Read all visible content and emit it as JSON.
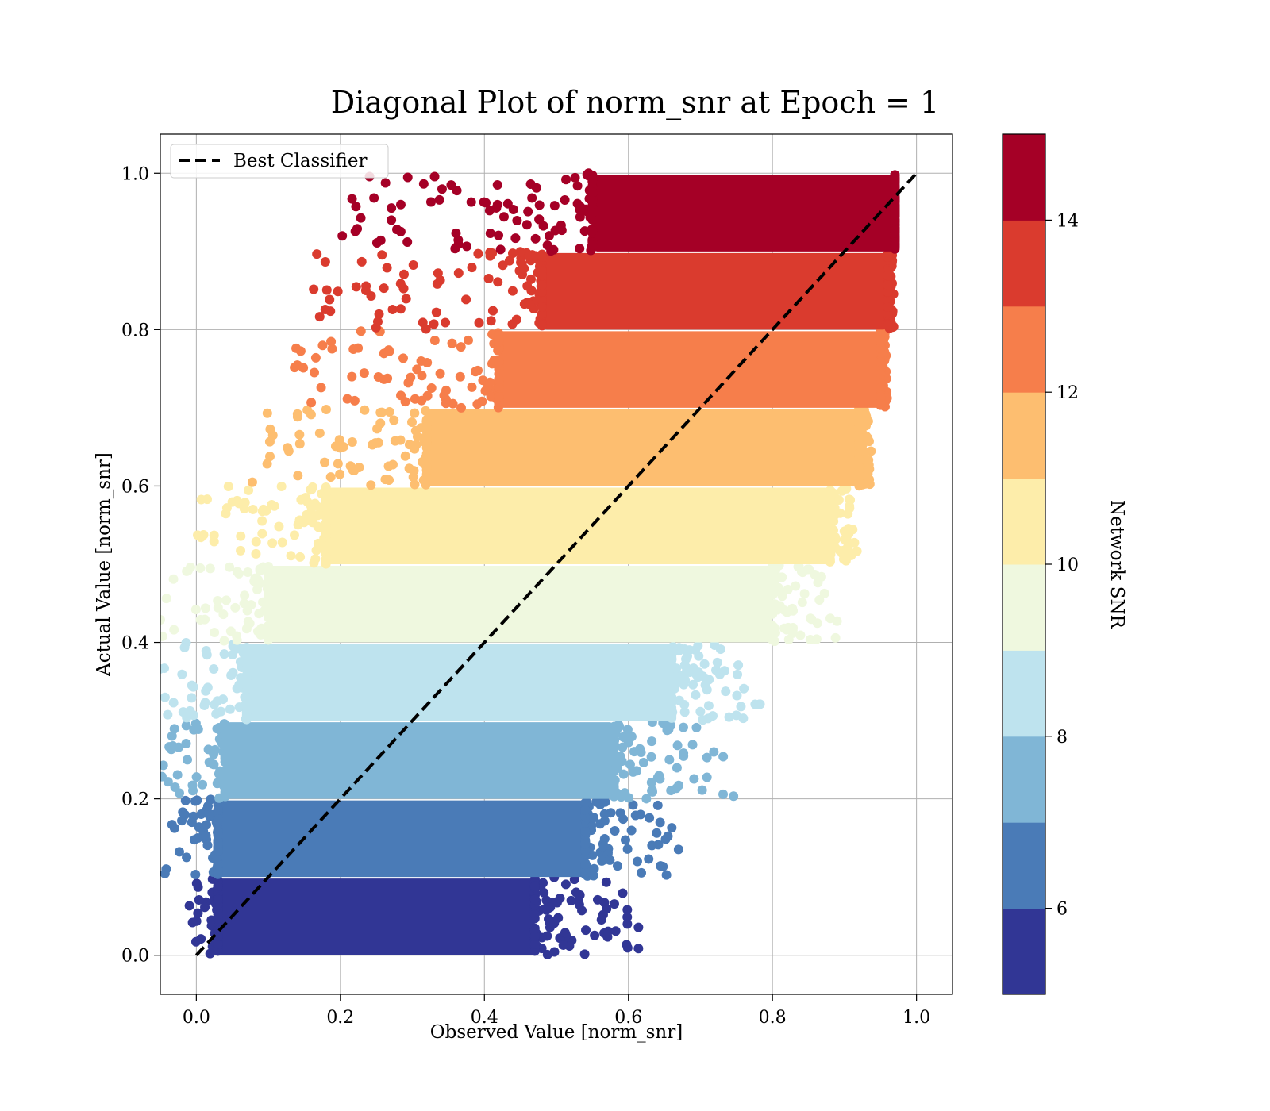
{
  "chart_data": {
    "type": "scatter",
    "title": "Diagonal Plot of norm_snr at Epoch = 1",
    "xlabel": "Observed Value [norm_snr]",
    "ylabel": "Actual Value [norm_snr]",
    "xlim": [
      -0.05,
      1.05
    ],
    "ylim": [
      -0.05,
      1.05
    ],
    "x_ticks": [
      "0.0",
      "0.2",
      "0.4",
      "0.6",
      "0.8",
      "1.0"
    ],
    "y_ticks": [
      "0.0",
      "0.2",
      "0.4",
      "0.6",
      "0.8",
      "1.0"
    ],
    "grid": true,
    "legend": {
      "placement": "top-left",
      "entries": [
        "Best Classifier"
      ]
    },
    "reference_line": {
      "name": "Best Classifier",
      "style": "dashed",
      "color": "#000000",
      "x": [
        0.0,
        1.0
      ],
      "y": [
        0.0,
        1.0
      ]
    },
    "colorbar": {
      "label": "Network SNR",
      "min": 5,
      "max": 15,
      "ticks": [
        "6",
        "8",
        "10",
        "12",
        "14"
      ],
      "colors": [
        "#313695",
        "#4a7bb7",
        "#80b6d6",
        "#bee3ee",
        "#eff8df",
        "#fdedaa",
        "#fdbe70",
        "#f67e4b",
        "#da3b2e",
        "#a50026"
      ]
    },
    "bands": [
      {
        "snr_bin": [
          5,
          6
        ],
        "y_range": [
          0.0,
          0.1
        ],
        "x_core": [
          0.03,
          0.47
        ],
        "x_spread_max": 0.64,
        "color": "#313695"
      },
      {
        "snr_bin": [
          6,
          7
        ],
        "y_range": [
          0.1,
          0.2
        ],
        "x_core": [
          0.03,
          0.54
        ],
        "x_spread_max": 0.7,
        "color": "#4a7bb7"
      },
      {
        "snr_bin": [
          7,
          8
        ],
        "y_range": [
          0.2,
          0.3
        ],
        "x_core": [
          0.04,
          0.58
        ],
        "x_spread_max": 0.78,
        "color": "#80b6d6"
      },
      {
        "snr_bin": [
          8,
          9
        ],
        "y_range": [
          0.3,
          0.4
        ],
        "x_core": [
          0.07,
          0.66
        ],
        "x_spread_max": 0.8,
        "color": "#bee3ee"
      },
      {
        "snr_bin": [
          9,
          10
        ],
        "y_range": [
          0.4,
          0.5
        ],
        "x_core": [
          0.1,
          0.8
        ],
        "x_spread_max": 0.9,
        "color": "#eff8df"
      },
      {
        "snr_bin": [
          10,
          11
        ],
        "y_range": [
          0.5,
          0.6
        ],
        "x_core": [
          0.18,
          0.88
        ],
        "x_spread_max": 0.92,
        "color": "#fdedaa"
      },
      {
        "snr_bin": [
          11,
          12
        ],
        "y_range": [
          0.6,
          0.7
        ],
        "x_core": [
          0.32,
          0.92
        ],
        "x_spread_max": 0.94,
        "color": "#fdbe70"
      },
      {
        "snr_bin": [
          12,
          13
        ],
        "y_range": [
          0.7,
          0.8
        ],
        "x_core": [
          0.42,
          0.95
        ],
        "x_spread_max": 0.96,
        "color": "#f67e4b"
      },
      {
        "snr_bin": [
          13,
          14
        ],
        "y_range": [
          0.8,
          0.9
        ],
        "x_core": [
          0.48,
          0.96
        ],
        "x_spread_max": 0.97,
        "color": "#da3b2e"
      },
      {
        "snr_bin": [
          14,
          15
        ],
        "y_range": [
          0.9,
          1.0
        ],
        "x_core": [
          0.55,
          0.97
        ],
        "x_spread_max": 0.97,
        "color": "#a50026"
      }
    ]
  }
}
